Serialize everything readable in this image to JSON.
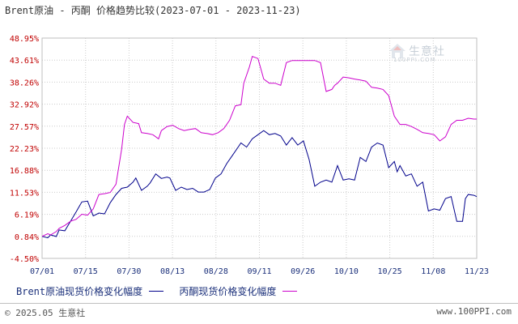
{
  "title": "Brent原油 - 丙酮 价格趋势比较(2023-07-01 - 2023-11-23)",
  "watermark": {
    "brand": "生意社",
    "url": "100PPI.COM"
  },
  "legend": {
    "series1_label": "Brent原油现货价格变化幅度",
    "series2_label": "丙酮现货价格变化幅度"
  },
  "footer": {
    "copyright": "© 2025.05 生意社",
    "site": "www.100PPI.com"
  },
  "colors": {
    "series1": "#00008b",
    "series2": "#cc00cc",
    "grid": "#cccccc",
    "tick_y": "#c00000",
    "tick_x": "#1a2f7a"
  },
  "chart_data": {
    "type": "line",
    "x_ticks": [
      "07/01",
      "07/15",
      "07/30",
      "08/13",
      "08/28",
      "09/11",
      "09/26",
      "10/10",
      "10/25",
      "11/08",
      "11/23"
    ],
    "y_ticks": [
      "48.95%",
      "43.61%",
      "38.26%",
      "32.92%",
      "27.57%",
      "22.23%",
      "16.88%",
      "11.53%",
      "6.19%",
      "0.84%",
      "-4.50%"
    ],
    "ylim": [
      -4.5,
      48.95
    ],
    "grid": true,
    "legend_position": "bottom",
    "series": [
      {
        "name": "Brent原油现货价格变化幅度",
        "color": "#00008b",
        "points": [
          [
            0,
            0.84
          ],
          [
            2,
            0.5
          ],
          [
            3,
            1.2
          ],
          [
            5,
            0.8
          ],
          [
            6,
            2.4
          ],
          [
            8,
            2.2
          ],
          [
            10,
            4.5
          ],
          [
            12,
            6.8
          ],
          [
            14,
            9.2
          ],
          [
            16,
            9.4
          ],
          [
            18,
            5.8
          ],
          [
            20,
            6.5
          ],
          [
            22,
            6.3
          ],
          [
            24,
            9.0
          ],
          [
            26,
            11.0
          ],
          [
            28,
            12.5
          ],
          [
            30,
            12.8
          ],
          [
            32,
            14.0
          ],
          [
            33,
            15.0
          ],
          [
            35,
            12.0
          ],
          [
            37,
            13.0
          ],
          [
            38,
            13.8
          ],
          [
            40,
            16.0
          ],
          [
            42,
            14.9
          ],
          [
            44,
            15.2
          ],
          [
            45,
            15.0
          ],
          [
            47,
            12.0
          ],
          [
            49,
            12.8
          ],
          [
            51,
            12.2
          ],
          [
            53,
            12.5
          ],
          [
            55,
            11.6
          ],
          [
            57,
            11.6
          ],
          [
            59,
            12.2
          ],
          [
            61,
            15.0
          ],
          [
            63,
            16.0
          ],
          [
            65,
            18.5
          ],
          [
            67,
            20.5
          ],
          [
            69,
            22.5
          ],
          [
            70,
            23.5
          ],
          [
            72,
            22.5
          ],
          [
            74,
            24.5
          ],
          [
            76,
            25.5
          ],
          [
            78,
            26.5
          ],
          [
            80,
            25.5
          ],
          [
            82,
            25.8
          ],
          [
            84,
            25.2
          ],
          [
            86,
            23.0
          ],
          [
            88,
            24.8
          ],
          [
            90,
            23.0
          ],
          [
            92,
            24.0
          ],
          [
            94,
            19.5
          ],
          [
            96,
            13.0
          ],
          [
            98,
            14.0
          ],
          [
            100,
            14.5
          ],
          [
            102,
            14.0
          ],
          [
            104,
            18.0
          ],
          [
            106,
            14.5
          ],
          [
            108,
            14.8
          ],
          [
            110,
            14.5
          ],
          [
            112,
            20.0
          ],
          [
            114,
            19.0
          ],
          [
            116,
            22.5
          ],
          [
            118,
            23.5
          ],
          [
            120,
            23.0
          ],
          [
            122,
            17.5
          ],
          [
            124,
            19.0
          ],
          [
            125,
            16.5
          ],
          [
            126,
            18.0
          ],
          [
            128,
            15.5
          ],
          [
            130,
            16.0
          ],
          [
            132,
            13.0
          ],
          [
            134,
            14.0
          ],
          [
            136,
            7.0
          ],
          [
            138,
            7.5
          ],
          [
            140,
            7.2
          ],
          [
            142,
            10.0
          ],
          [
            144,
            10.5
          ],
          [
            146,
            4.5
          ],
          [
            148,
            4.5
          ],
          [
            149,
            10.0
          ],
          [
            150,
            11.0
          ],
          [
            152,
            10.8
          ],
          [
            153,
            10.5
          ]
        ]
      },
      {
        "name": "丙酮现货价格变化幅度",
        "color": "#cc00cc",
        "points": [
          [
            0,
            0.84
          ],
          [
            2,
            1.5
          ],
          [
            3,
            1.2
          ],
          [
            5,
            2.0
          ],
          [
            6,
            2.8
          ],
          [
            8,
            3.5
          ],
          [
            10,
            4.5
          ],
          [
            12,
            5.0
          ],
          [
            14,
            6.2
          ],
          [
            16,
            6.0
          ],
          [
            18,
            7.5
          ],
          [
            20,
            11.0
          ],
          [
            22,
            11.2
          ],
          [
            24,
            11.5
          ],
          [
            26,
            13.5
          ],
          [
            28,
            22.0
          ],
          [
            29,
            28.0
          ],
          [
            30,
            30.0
          ],
          [
            32,
            28.5
          ],
          [
            34,
            28.2
          ],
          [
            35,
            26.0
          ],
          [
            37,
            25.8
          ],
          [
            39,
            25.5
          ],
          [
            41,
            24.5
          ],
          [
            42,
            26.5
          ],
          [
            44,
            27.5
          ],
          [
            46,
            27.8
          ],
          [
            48,
            27.0
          ],
          [
            50,
            26.5
          ],
          [
            52,
            26.8
          ],
          [
            54,
            27.0
          ],
          [
            56,
            26.0
          ],
          [
            58,
            25.8
          ],
          [
            60,
            25.5
          ],
          [
            62,
            26.0
          ],
          [
            64,
            27.0
          ],
          [
            66,
            29.0
          ],
          [
            68,
            32.5
          ],
          [
            70,
            32.8
          ],
          [
            71,
            38.0
          ],
          [
            73,
            42.0
          ],
          [
            74,
            44.5
          ],
          [
            76,
            44.0
          ],
          [
            77,
            41.5
          ],
          [
            78,
            39.0
          ],
          [
            80,
            38.0
          ],
          [
            82,
            38.0
          ],
          [
            84,
            37.5
          ],
          [
            86,
            43.0
          ],
          [
            88,
            43.5
          ],
          [
            90,
            43.5
          ],
          [
            92,
            43.5
          ],
          [
            94,
            43.5
          ],
          [
            96,
            43.5
          ],
          [
            98,
            43.0
          ],
          [
            100,
            36.0
          ],
          [
            102,
            36.5
          ],
          [
            103,
            37.5
          ],
          [
            104,
            38.0
          ],
          [
            106,
            39.5
          ],
          [
            108,
            39.3
          ],
          [
            110,
            39.0
          ],
          [
            112,
            38.8
          ],
          [
            114,
            38.5
          ],
          [
            116,
            37.0
          ],
          [
            118,
            36.8
          ],
          [
            120,
            36.5
          ],
          [
            122,
            35.0
          ],
          [
            124,
            30.0
          ],
          [
            126,
            28.0
          ],
          [
            128,
            28.0
          ],
          [
            130,
            27.5
          ],
          [
            132,
            26.8
          ],
          [
            134,
            26.0
          ],
          [
            136,
            25.8
          ],
          [
            138,
            25.5
          ],
          [
            140,
            24.0
          ],
          [
            142,
            25.0
          ],
          [
            144,
            28.0
          ],
          [
            146,
            29.0
          ],
          [
            148,
            29.0
          ],
          [
            150,
            29.5
          ],
          [
            152,
            29.3
          ],
          [
            153,
            29.3
          ]
        ]
      }
    ]
  }
}
